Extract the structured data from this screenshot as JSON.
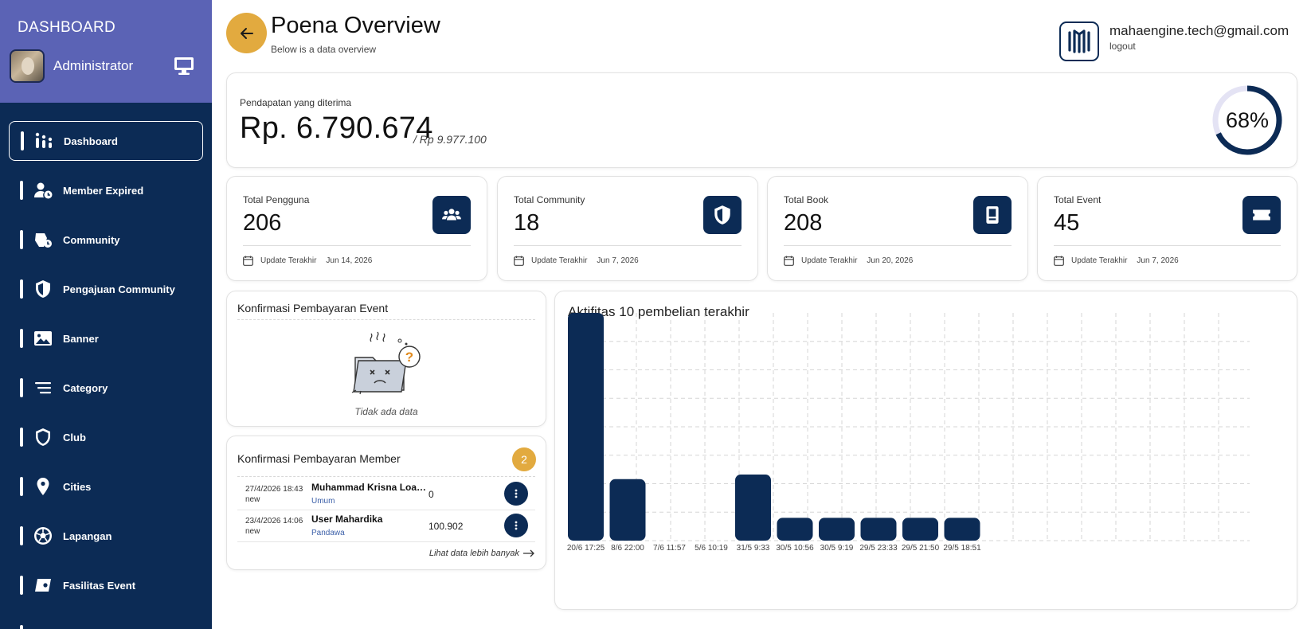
{
  "sidebar": {
    "brand": "DASHBOARD",
    "user_name": "Administrator",
    "items": [
      {
        "label": "Dashboard",
        "icon": "chart-bars-icon",
        "active": true
      },
      {
        "label": "Member Expired",
        "icon": "user-clock-icon"
      },
      {
        "label": "Community",
        "icon": "community-icon"
      },
      {
        "label": "Pengajuan Community",
        "icon": "shield-check-icon"
      },
      {
        "label": "Banner",
        "icon": "image-icon"
      },
      {
        "label": "Category",
        "icon": "list-icon"
      },
      {
        "label": "Club",
        "icon": "shield-icon"
      },
      {
        "label": "Cities",
        "icon": "map-pin-icon"
      },
      {
        "label": "Lapangan",
        "icon": "soccer-ball-icon"
      },
      {
        "label": "Fasilitas Event",
        "icon": "ticket-icon"
      }
    ]
  },
  "header": {
    "title": "Poena Overview",
    "subtitle": "Below is a data overview",
    "email": "mahaengine.tech@gmail.com",
    "logout": "logout"
  },
  "revenue": {
    "label": "Pendapatan yang diterima",
    "value": "Rp. 6.790.674",
    "target": "/ Rp 9.977.100",
    "percent_text": "68%",
    "percent": 68
  },
  "stats": [
    {
      "label": "Total Pengguna",
      "value": "206",
      "icon": "users-icon",
      "update_label": "Update Terakhir",
      "date": "Jun 14, 2026"
    },
    {
      "label": "Total Community",
      "value": "18",
      "icon": "shield-icon",
      "update_label": "Update Terakhir",
      "date": "Jun 7, 2026"
    },
    {
      "label": "Total Book",
      "value": "208",
      "icon": "book-icon",
      "update_label": "Update Terakhir",
      "date": "Jun 20, 2026"
    },
    {
      "label": "Total Event",
      "value": "45",
      "icon": "ticket-icon",
      "update_label": "Update Terakhir",
      "date": "Jun 7, 2026"
    }
  ],
  "event_confirm": {
    "title": "Konfirmasi Pembayaran Event",
    "empty_text": "Tidak ada data"
  },
  "member_confirm": {
    "title": "Konfirmasi Pembayaran Member",
    "count": "2",
    "rows": [
      {
        "date": "27/4/2026 18:43",
        "status": "new",
        "name": "Muhammad Krisna Loan ...",
        "category": "Umum",
        "amount": "0"
      },
      {
        "date": "23/4/2026 14:06",
        "status": "new",
        "name": "User Mahardika",
        "category": "Pandawa",
        "amount": "100.902"
      }
    ],
    "more_link": "Lihat data lebih banyak"
  },
  "chart_data": {
    "type": "bar",
    "title": "Aktifitas 10 pembelian terakhir",
    "categories": [
      "20/6 17:25",
      "8/6 22:00",
      "7/6 11:57",
      "5/6 10:19",
      "31/5 9:33",
      "30/5 10:56",
      "30/5 9:19",
      "29/5 23:33",
      "29/5 21:50",
      "29/5 18:51"
    ],
    "values": [
      100,
      27,
      0,
      0,
      29,
      10,
      10,
      10,
      10,
      10
    ],
    "ylim": [
      0,
      100
    ],
    "grid": true,
    "bar_color": "#0c2b55"
  },
  "colors": {
    "sidebar": "#0c2b55",
    "sidebar_header": "#5b63b5",
    "accent": "#e2aa3f",
    "primary": "#0c2b55"
  }
}
